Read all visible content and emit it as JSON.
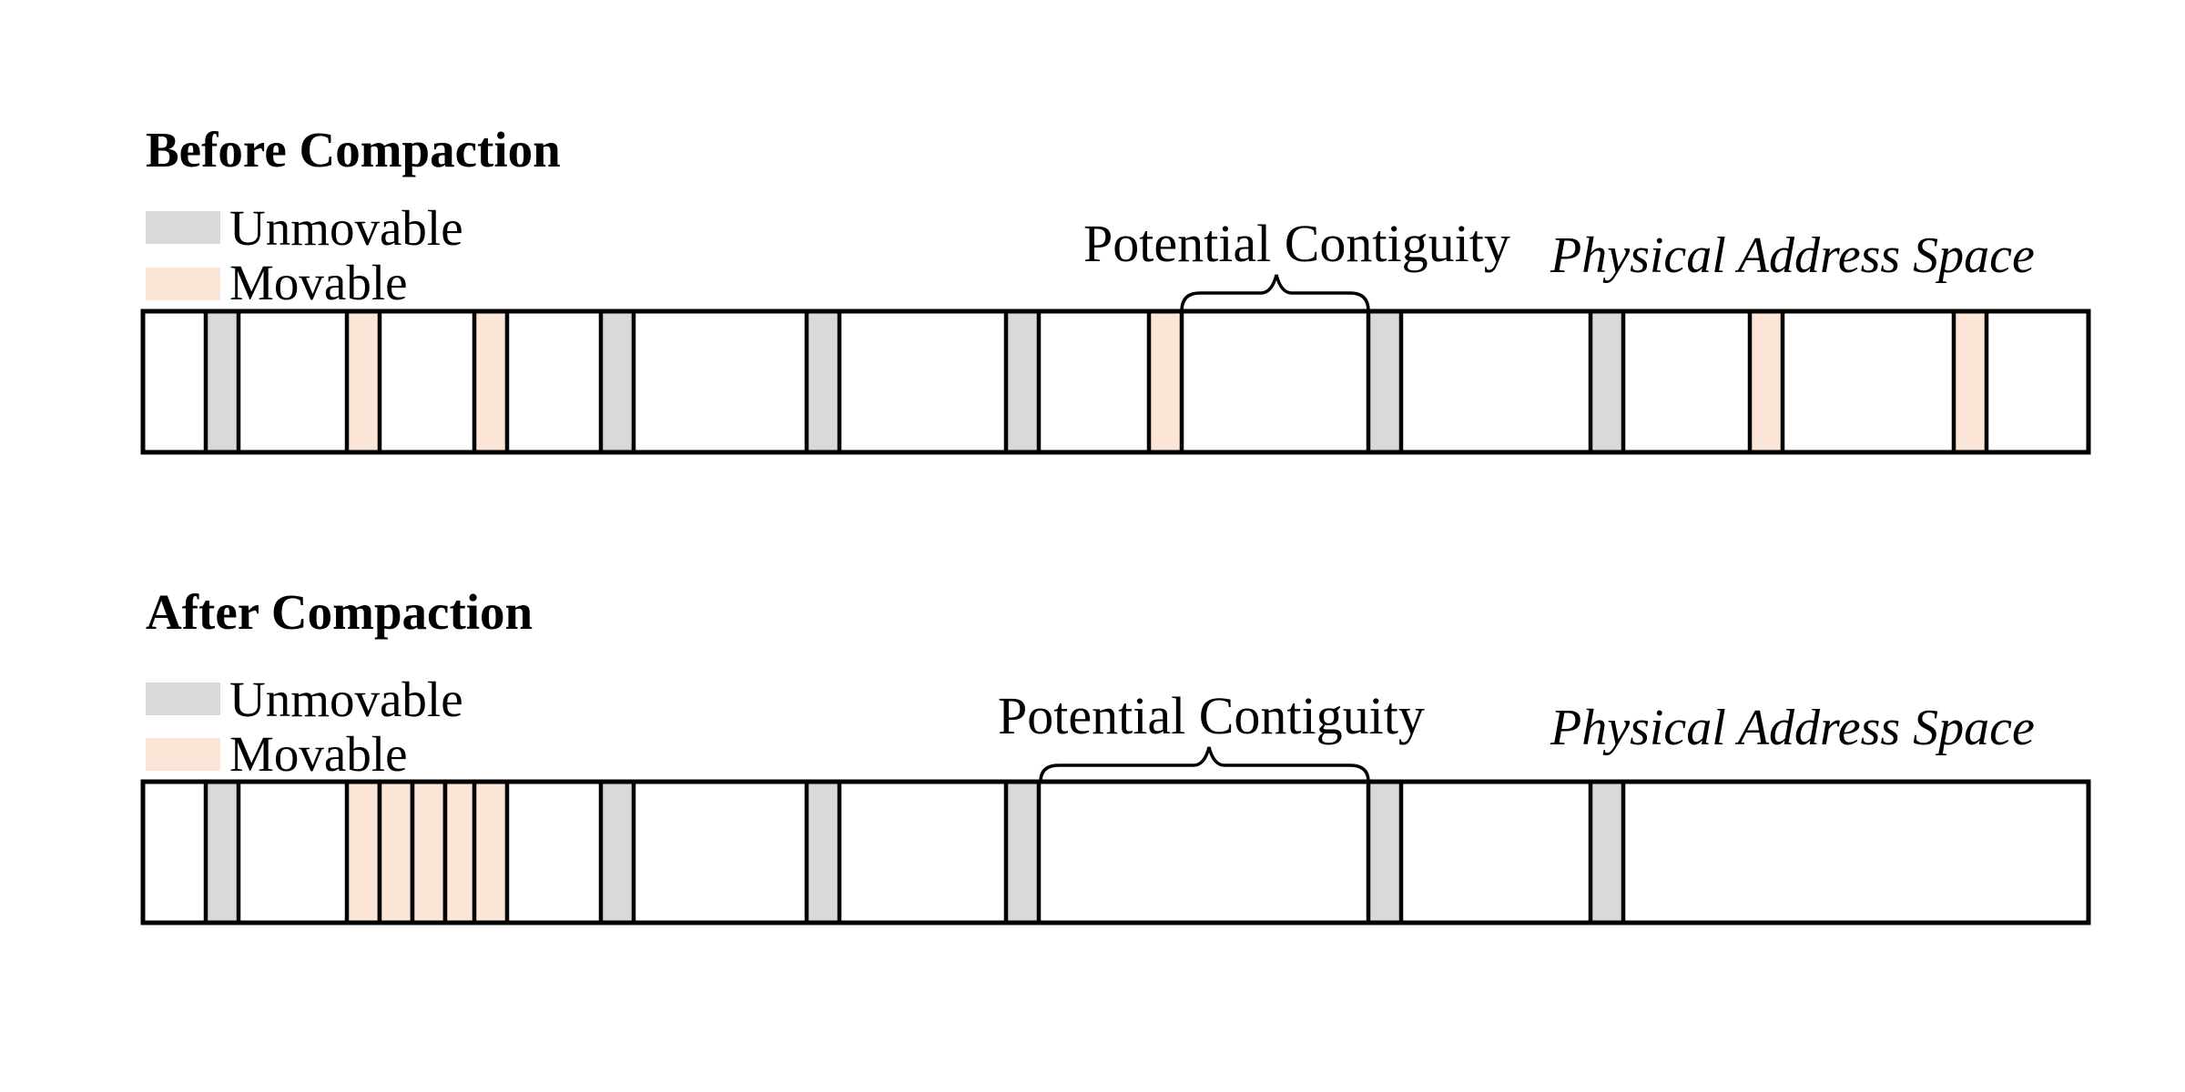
{
  "colors": {
    "unmovable": "#d9d9d9",
    "movable": "#fbe5d6",
    "outline": "#000000",
    "background": "#ffffff"
  },
  "panels": [
    {
      "id": "before",
      "title": "Before Compaction",
      "legend": {
        "unmovable_label": "Unmovable",
        "movable_label": "Movable"
      },
      "brace_label": "Potential Contiguity",
      "space_label": "Physical Address Space",
      "block_sequence": [
        "unmovable",
        "movable",
        "movable",
        "unmovable",
        "unmovable",
        "unmovable",
        "movable",
        "unmovable",
        "unmovable",
        "movable",
        "movable"
      ]
    },
    {
      "id": "after",
      "title": "After Compaction",
      "legend": {
        "unmovable_label": "Unmovable",
        "movable_label": "Movable"
      },
      "brace_label": "Potential Contiguity",
      "space_label": "Physical Address Space",
      "block_sequence": [
        "unmovable",
        "movable",
        "movable",
        "movable",
        "movable",
        "movable",
        "unmovable",
        "unmovable",
        "unmovable",
        "unmovable",
        "unmovable"
      ]
    }
  ]
}
